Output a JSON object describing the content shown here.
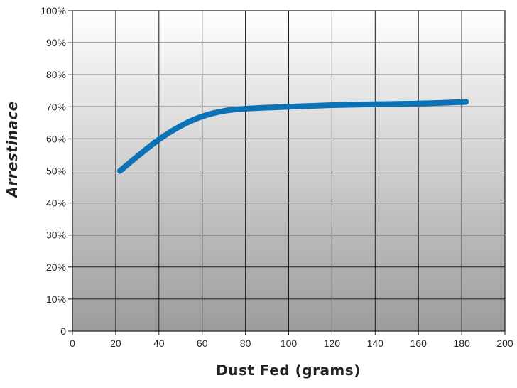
{
  "chart_data": {
    "type": "line",
    "title": "",
    "xlabel": "Dust Fed (grams)",
    "ylabel": "Arrestinace",
    "xlim": [
      0,
      200
    ],
    "ylim": [
      0,
      100
    ],
    "x_ticks": [
      0,
      20,
      40,
      60,
      80,
      100,
      120,
      140,
      160,
      180,
      200
    ],
    "x_tick_labels": [
      "0",
      "20",
      "40",
      "60",
      "80",
      "100",
      "120",
      "140",
      "160",
      "180",
      "200"
    ],
    "y_ticks": [
      0,
      10,
      20,
      30,
      40,
      50,
      60,
      70,
      80,
      90,
      100
    ],
    "y_tick_labels": [
      "0",
      "10%",
      "20%",
      "30%",
      "40%",
      "50%",
      "60%",
      "70%",
      "80%",
      "90%",
      "100%"
    ],
    "grid": true,
    "legend": false,
    "background": "vertical gradient from white (top) to grey (bottom)",
    "colors": {
      "line": "#0b72b5",
      "grid": "#1a1a1a",
      "gradient_top": "#ffffff",
      "gradient_bottom": "#9c9c9f"
    },
    "series": [
      {
        "x": [
          22,
          30,
          40,
          50,
          60,
          70,
          80,
          100,
          120,
          140,
          160,
          182
        ],
        "y": [
          50,
          54.5,
          59.8,
          64.0,
          67.0,
          68.7,
          69.4,
          70.0,
          70.5,
          70.8,
          71.0,
          71.5
        ]
      }
    ]
  }
}
